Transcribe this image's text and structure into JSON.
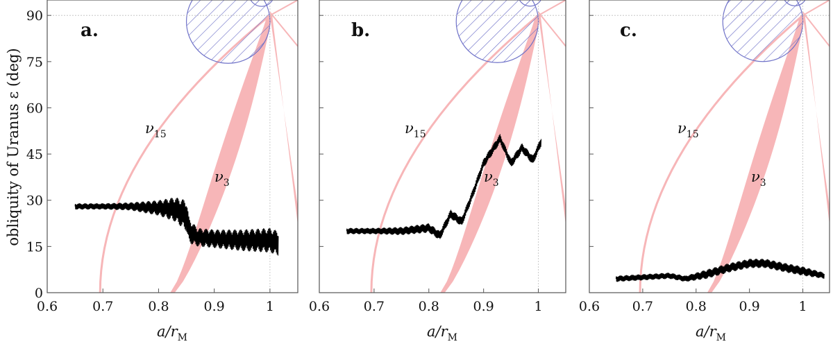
{
  "figure": {
    "y_axis_label": "obliquity of Uranus ε (deg)",
    "x_axis_label": "a/r",
    "x_axis_label_sub": "M"
  },
  "colors": {
    "resonance": "#f7b6b8",
    "trajectory": "#000000",
    "hatch": "#6f72c8",
    "frame": "#555555",
    "guide": "#bdbdbd"
  },
  "chart_data": [
    {
      "type": "scatter",
      "panel": "a.",
      "xlim": [
        0.6,
        1.05
      ],
      "ylim": [
        0,
        95
      ],
      "xticks": [
        0.6,
        0.7,
        0.8,
        0.9,
        1
      ],
      "xtick_labels": [
        "0.6",
        "0.7",
        "0.8",
        "0.9",
        "1"
      ],
      "yticks": [
        0,
        15,
        30,
        45,
        60,
        75,
        90
      ],
      "ytick_labels": [
        "0",
        "15",
        "30",
        "45",
        "60",
        "75",
        "90"
      ],
      "annotations": [
        {
          "text": "ν",
          "sub": "15",
          "x": 0.75,
          "y": 53
        },
        {
          "text": "ν",
          "sub": "3",
          "x": 0.885,
          "y": 37
        }
      ],
      "trajectory": {
        "x": [
          0.65,
          0.7,
          0.75,
          0.8,
          0.83,
          0.85,
          0.855,
          0.87,
          0.9,
          0.95,
          1.0,
          1.015
        ],
        "y": [
          28,
          28,
          28,
          27.5,
          27,
          25,
          20,
          18,
          17.5,
          17,
          17,
          16
        ],
        "amplitude": [
          1,
          1,
          1.3,
          2.5,
          4,
          5,
          4,
          3,
          3,
          3.5,
          4,
          4
        ]
      }
    },
    {
      "type": "scatter",
      "panel": "b.",
      "xlim": [
        0.6,
        1.05
      ],
      "ylim": [
        0,
        95
      ],
      "xticks": [
        0.6,
        0.7,
        0.8,
        0.9,
        1
      ],
      "xtick_labels": [
        "0.6",
        "0.7",
        "0.8",
        "0.9",
        "1"
      ],
      "yticks": [
        0,
        15,
        30,
        45,
        60,
        75,
        90
      ],
      "ytick_labels": [
        "",
        "",
        "",
        "",
        "",
        "",
        ""
      ],
      "annotations": [
        {
          "text": "ν",
          "sub": "15",
          "x": 0.75,
          "y": 53
        },
        {
          "text": "ν",
          "sub": "3",
          "x": 0.885,
          "y": 37
        }
      ],
      "trajectory": {
        "x": [
          0.65,
          0.7,
          0.75,
          0.8,
          0.82,
          0.84,
          0.86,
          0.88,
          0.9,
          0.93,
          0.95,
          0.97,
          0.99,
          1.005
        ],
        "y": [
          20,
          20,
          20,
          21,
          18.5,
          25.5,
          23,
          32,
          42,
          50,
          42,
          47,
          43,
          49
        ],
        "amplitude": [
          1,
          1,
          1.3,
          1.5,
          1.5,
          1.5,
          1.5,
          1.5,
          1.5,
          1.5,
          1.5,
          1.5,
          1.5,
          1.5
        ]
      }
    },
    {
      "type": "scatter",
      "panel": "c.",
      "xlim": [
        0.6,
        1.05
      ],
      "ylim": [
        0,
        95
      ],
      "xticks": [
        0.6,
        0.7,
        0.8,
        0.9,
        1
      ],
      "xtick_labels": [
        "0.6",
        "0.7",
        "0.8",
        "0.9",
        "1"
      ],
      "yticks": [
        0,
        15,
        30,
        45,
        60,
        75,
        90
      ],
      "ytick_labels": [
        "",
        "",
        "",
        "",
        "",
        "",
        ""
      ],
      "annotations": [
        {
          "text": "ν",
          "sub": "15",
          "x": 0.75,
          "y": 53
        },
        {
          "text": "ν",
          "sub": "3",
          "x": 0.885,
          "y": 37
        }
      ],
      "trajectory": {
        "x": [
          0.65,
          0.7,
          0.75,
          0.78,
          0.82,
          0.86,
          0.9,
          0.93,
          0.97,
          1.0,
          1.04
        ],
        "y": [
          4.5,
          5,
          5.5,
          4.5,
          6,
          8,
          9.5,
          9.5,
          8,
          7,
          5.5
        ],
        "amplitude": [
          1,
          1,
          1,
          1,
          1.5,
          1.5,
          1.5,
          1.5,
          1.5,
          1.5,
          1
        ]
      }
    }
  ]
}
